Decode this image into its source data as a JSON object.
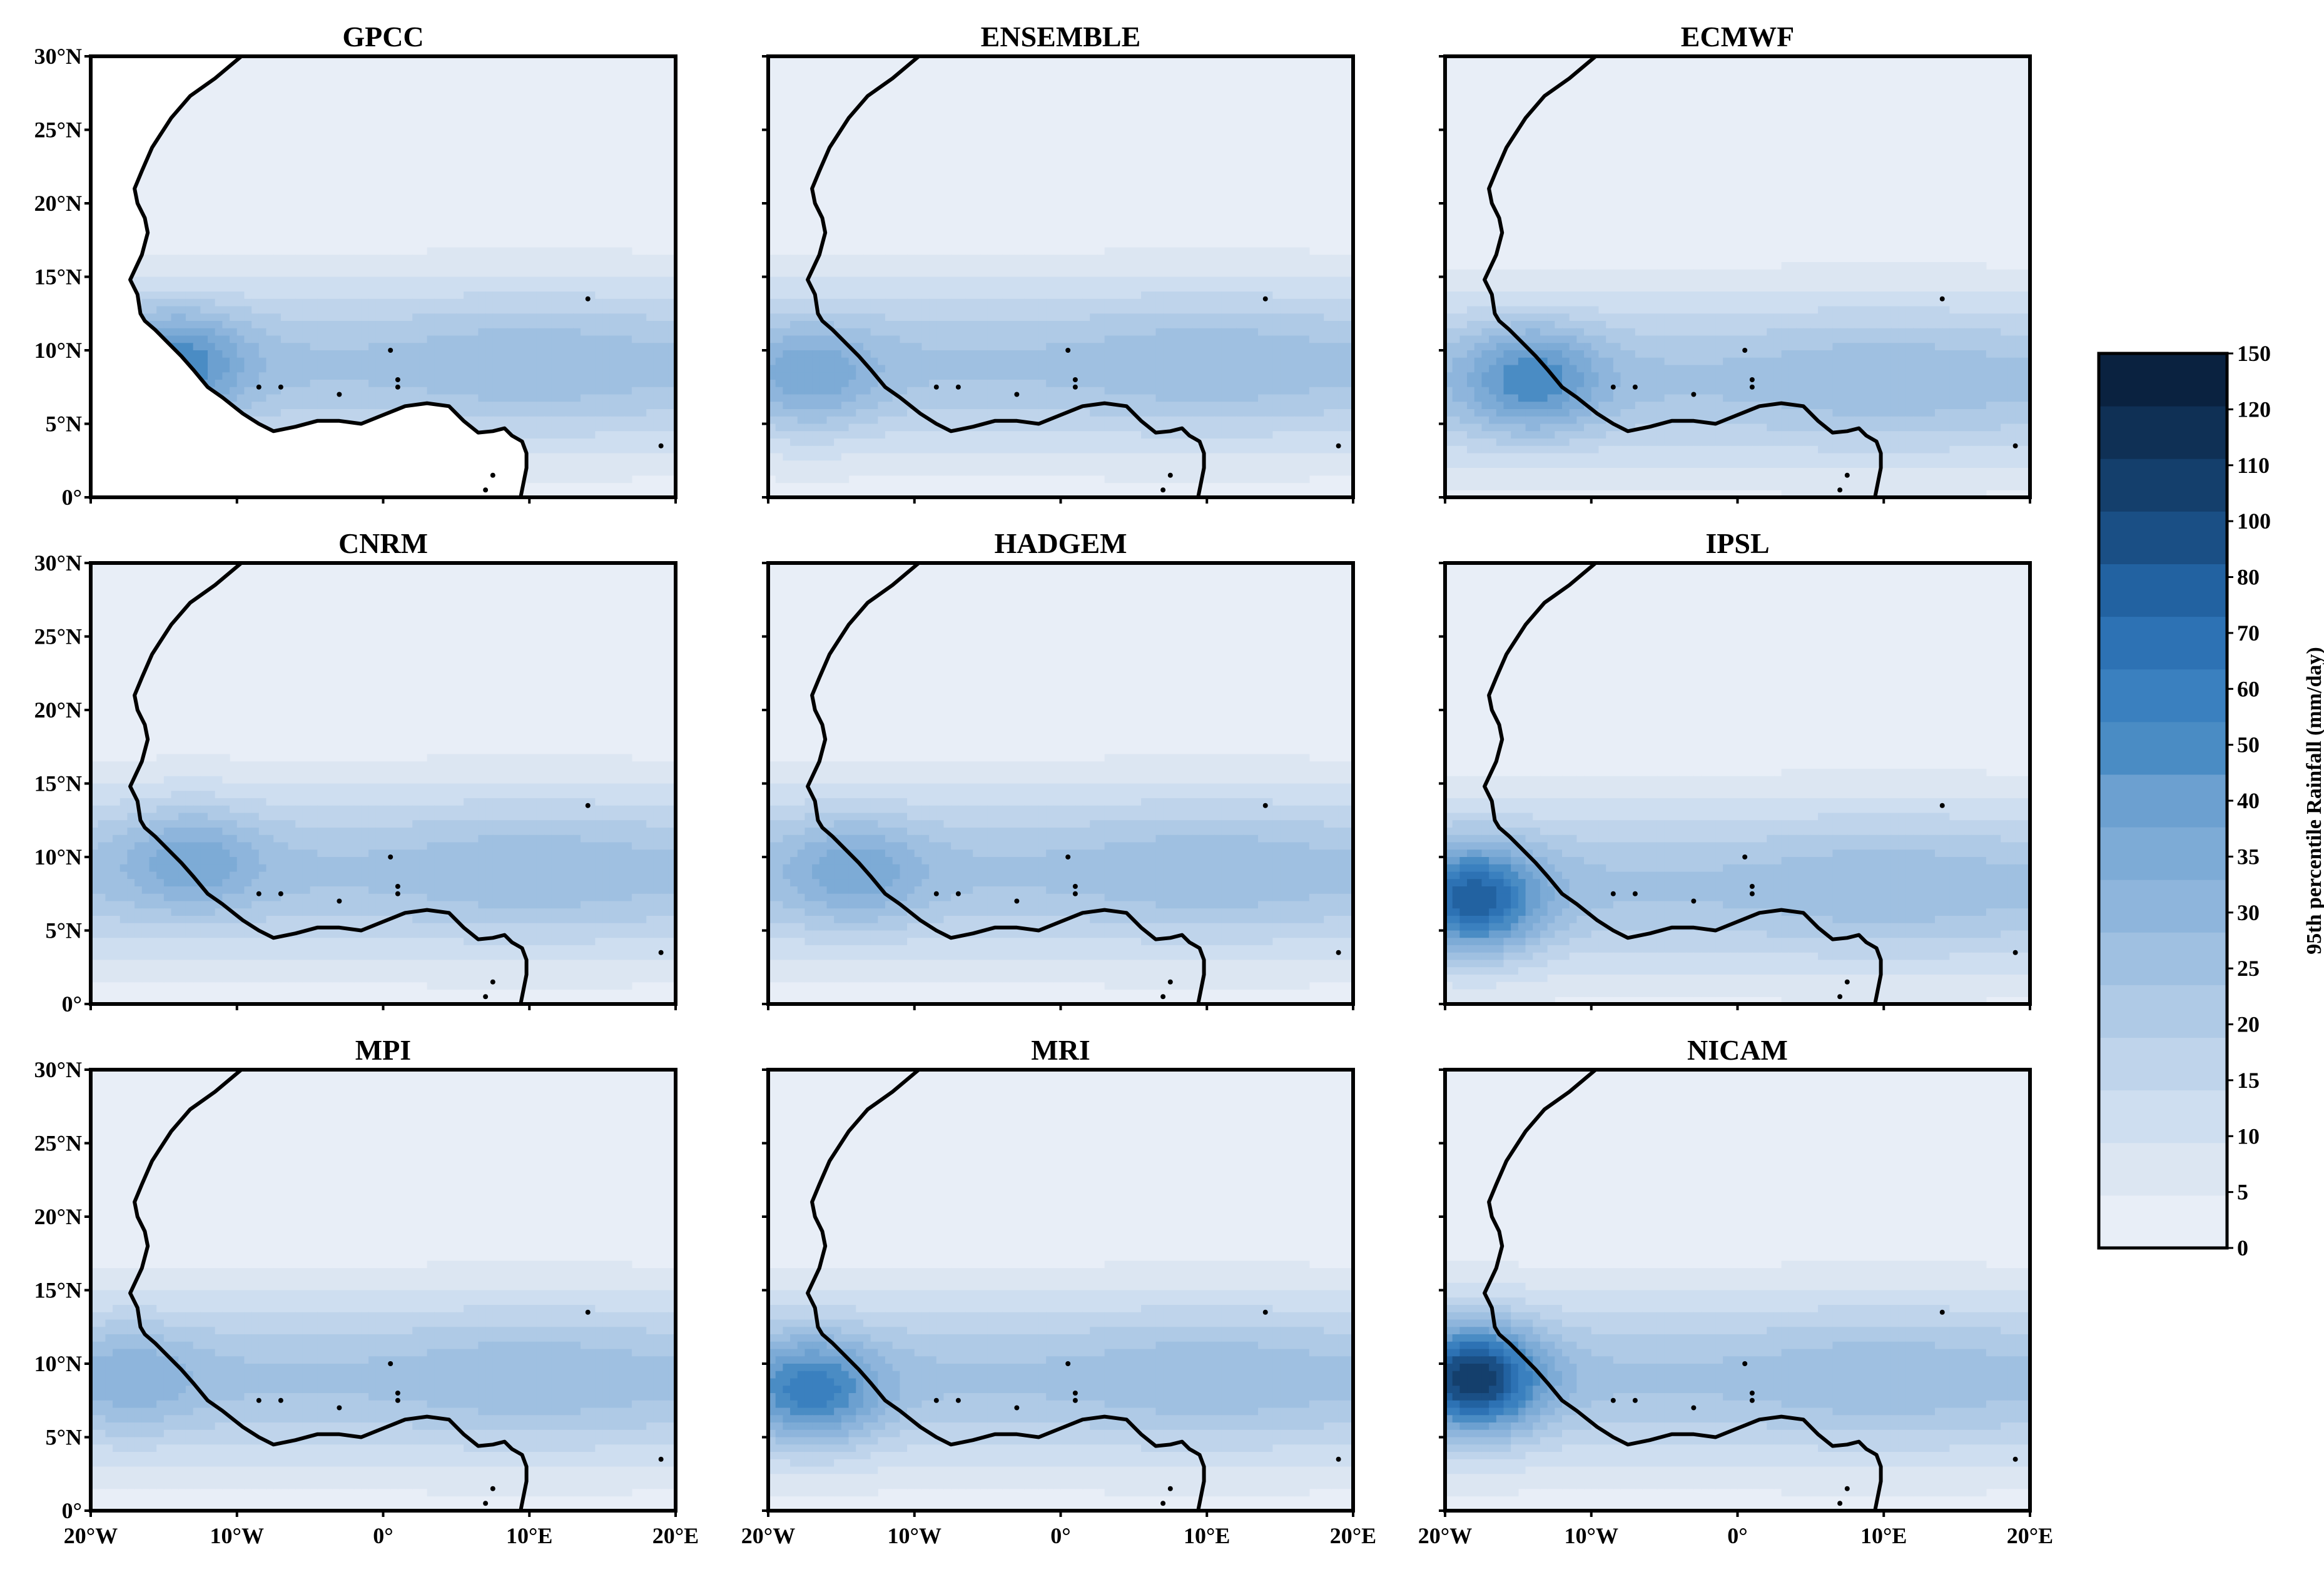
{
  "figure": {
    "panels": [
      "GPCC",
      "ENSEMBLE",
      "ECMWF",
      "CNRM",
      "HADGEM",
      "IPSL",
      "MPI",
      "MRI",
      "NICAM"
    ]
  },
  "chart_data": {
    "type": "heatmap",
    "description_kind": "filled-contour maps, 3x3 grid",
    "lat_ticks": [
      "30°N",
      "25°N",
      "20°N",
      "15°N",
      "10°N",
      "5°N",
      "0°"
    ],
    "lon_ticks": [
      "20°W",
      "10°W",
      "0°",
      "10°E",
      "20°E"
    ],
    "lat_range": [
      0,
      30
    ],
    "lon_range": [
      -20,
      20
    ],
    "colorbar": {
      "label": "95th percentile Rainfall  (mm/day)",
      "levels": [
        "0",
        "5",
        "10",
        "15",
        "20",
        "25",
        "30",
        "35",
        "40",
        "50",
        "60",
        "70",
        "80",
        "100",
        "110",
        "120",
        "150"
      ],
      "colors": [
        "#e8eef7",
        "#dce6f2",
        "#cedef0",
        "#bfd4eb",
        "#afcae6",
        "#9fc0e1",
        "#8eb5dc",
        "#7dabd6",
        "#6ca0d0",
        "#4a8cc4",
        "#3a80bf",
        "#2d72b4",
        "#2262a1",
        "#1a4f85",
        "#143f6c",
        "#0f3055",
        "#0a2240"
      ]
    },
    "panels": [
      {
        "name": "GPCC",
        "band_center_lat": 9,
        "peak_level": 10,
        "peak_lon": -14,
        "peak_lat": 9
      },
      {
        "name": "ENSEMBLE",
        "band_center_lat": 9,
        "peak_level": 8,
        "peak_lon": -17,
        "peak_lat": 8
      },
      {
        "name": "ECMWF",
        "band_center_lat": 8,
        "peak_level": 10,
        "peak_lon": -14,
        "peak_lat": 8
      },
      {
        "name": "CNRM",
        "band_center_lat": 9,
        "peak_level": 8,
        "peak_lon": -13,
        "peak_lat": 10
      },
      {
        "name": "HADGEM",
        "band_center_lat": 9,
        "peak_level": 8,
        "peak_lon": -14,
        "peak_lat": 9
      },
      {
        "name": "IPSL",
        "band_center_lat": 8,
        "peak_level": 13,
        "peak_lon": -18,
        "peak_lat": 7
      },
      {
        "name": "MPI",
        "band_center_lat": 9,
        "peak_level": 7,
        "peak_lon": -17,
        "peak_lat": 9
      },
      {
        "name": "MRI",
        "band_center_lat": 9,
        "peak_level": 11,
        "peak_lon": -17,
        "peak_lat": 8
      },
      {
        "name": "NICAM",
        "band_center_lat": 9,
        "peak_level": 15,
        "peak_lon": -18,
        "peak_lat": 9
      }
    ]
  }
}
